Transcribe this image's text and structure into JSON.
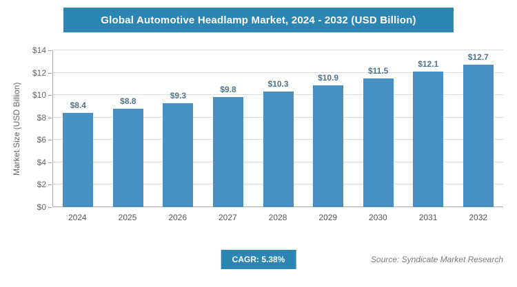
{
  "header": {
    "title": "Global Automotive Headlamp Market, 2024 - 2032 (USD Billion)",
    "color": "#2b86b4"
  },
  "chart_data": {
    "type": "bar",
    "title": "Global Automotive Headlamp Market, 2024 - 2032 (USD Billion)",
    "categories": [
      "2024",
      "2025",
      "2026",
      "2027",
      "2028",
      "2029",
      "2030",
      "2031",
      "2032"
    ],
    "values": [
      8.4,
      8.8,
      9.3,
      9.8,
      10.3,
      10.9,
      11.5,
      12.1,
      12.7
    ],
    "value_labels": [
      "$8.4",
      "$8.8",
      "$9.3",
      "$9.8",
      "$10.3",
      "$10.9",
      "$11.5",
      "$12.1",
      "$12.7"
    ],
    "xlabel": "",
    "ylabel": "Market Size (USD Billion)",
    "ylim": [
      0,
      14
    ],
    "ytick_labels": [
      "$0",
      "$2",
      "$4",
      "$6",
      "$8",
      "$10",
      "$12",
      "$14"
    ],
    "grid": "horizontal",
    "legend": "none",
    "bar_color": "#4691c1"
  },
  "footer": {
    "cagr_label": "CAGR: 5.38%",
    "source": "Source: Syndicate Market Research"
  }
}
